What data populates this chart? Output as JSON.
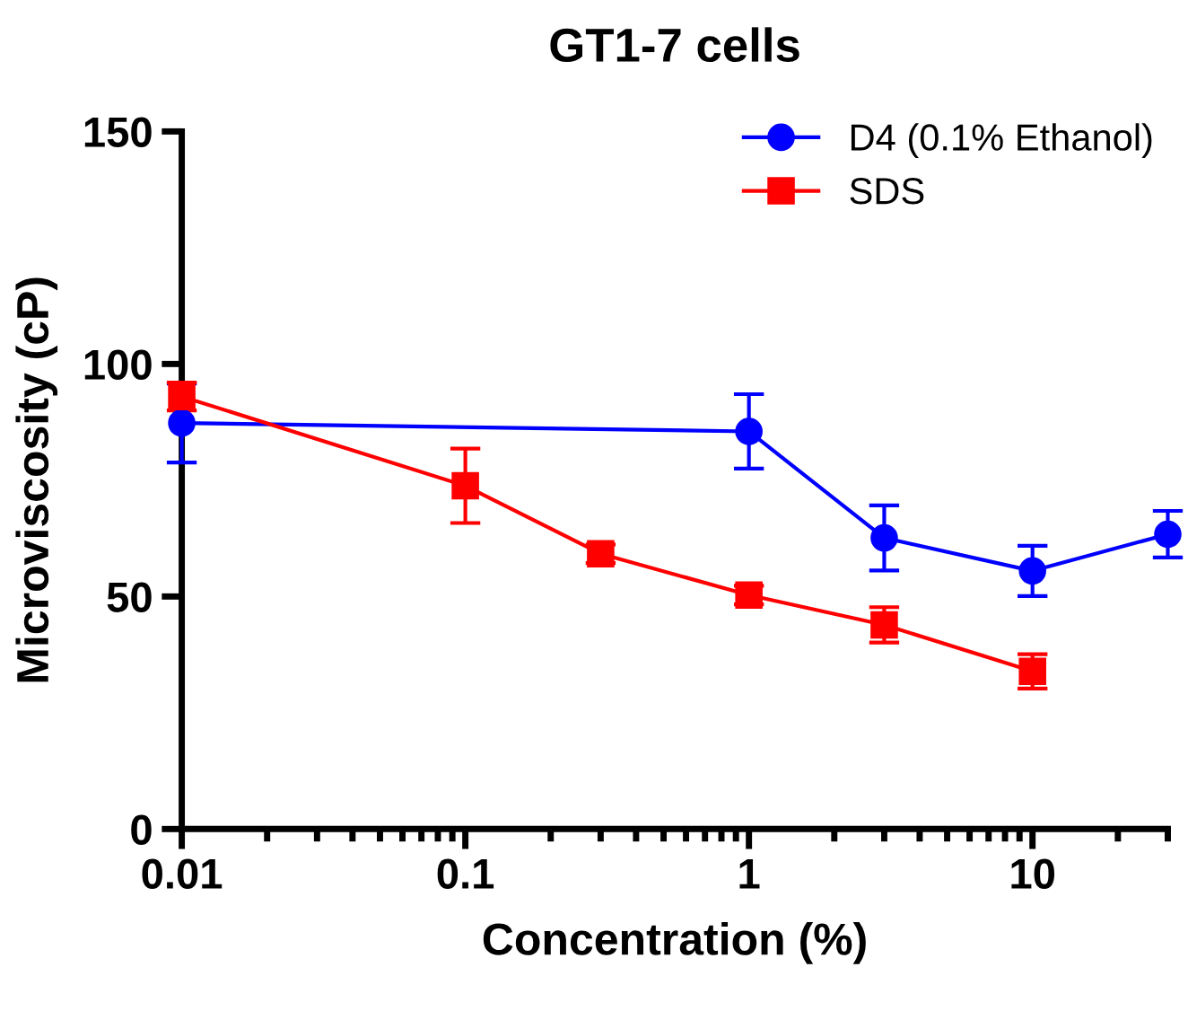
{
  "chart_data": {
    "type": "line",
    "title": "GT1-7 cells",
    "xlabel": "Concentration (%)",
    "ylabel": "Microviscosity (cP)",
    "log": "x",
    "xlim": [
      0.01,
      30
    ],
    "xticks": [
      0.01,
      0.1,
      1,
      10
    ],
    "ylim": [
      0,
      150
    ],
    "yticks": [
      0,
      50,
      100,
      150
    ],
    "grid": false,
    "legend": "top right",
    "series": [
      {
        "name": "D4 (0.1% Ethanol)",
        "color": "#0000ff",
        "marker": "circle",
        "x": [
          0.01,
          1,
          3,
          10,
          30
        ],
        "values": [
          87.3,
          85.5,
          62.6,
          55.5,
          63.4
        ],
        "errors": [
          8.5,
          8,
          7,
          5.4,
          5
        ]
      },
      {
        "name": "SDS",
        "color": "#ff0000",
        "marker": "square",
        "x": [
          0.01,
          0.1,
          0.3,
          1,
          3,
          10
        ],
        "values": [
          93,
          73.8,
          59.2,
          50.3,
          43.9,
          33.9
        ],
        "errors": [
          3,
          8,
          2,
          2,
          3.8,
          3.7
        ]
      }
    ]
  }
}
